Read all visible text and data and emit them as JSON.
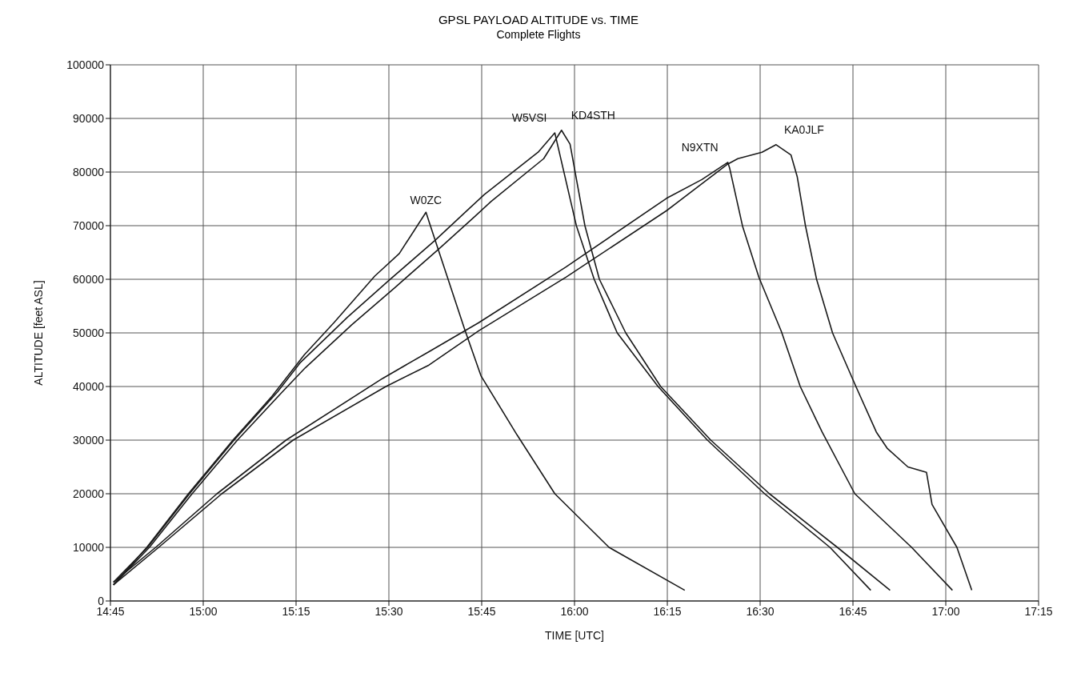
{
  "chart_data": {
    "type": "line",
    "title": "GPSL PAYLOAD ALTITUDE vs. TIME",
    "subtitle": "Complete Flights",
    "xlabel": "TIME [UTC]",
    "ylabel": "ALTITUDE [feet ASL]",
    "xlim": [
      14.75,
      17.25
    ],
    "xticks": [
      {
        "value": 14.75,
        "label": "14:45"
      },
      {
        "value": 15,
        "label": "15:00"
      },
      {
        "value": 15.25,
        "label": "15:15"
      },
      {
        "value": 15.5,
        "label": "15:30"
      },
      {
        "value": 15.75,
        "label": "15:45"
      },
      {
        "value": 16,
        "label": "16:00"
      },
      {
        "value": 16.25,
        "label": "16:15"
      },
      {
        "value": 16.5,
        "label": "16:30"
      },
      {
        "value": 16.75,
        "label": "16:45"
      },
      {
        "value": 17,
        "label": "17:00"
      },
      {
        "value": 17.25,
        "label": "17:15"
      }
    ],
    "ylim": [
      0,
      100000
    ],
    "yticks": [
      0,
      10000,
      20000,
      30000,
      40000,
      50000,
      60000,
      70000,
      80000,
      90000,
      100000
    ],
    "grid": true,
    "legend": false,
    "marker": "none",
    "line_style": "solid",
    "series": [
      {
        "name": "W0ZC",
        "color": "#1a1a1a",
        "x": [
          14.758,
          14.848,
          14.96,
          15.08,
          15.183,
          15.272,
          15.352,
          15.462,
          15.528,
          15.6,
          15.608,
          15.703,
          15.748,
          15.845,
          15.947,
          16.093,
          16.297
        ],
        "values": [
          3000,
          10000,
          20000,
          30000,
          38000,
          45900,
          51900,
          60600,
          64800,
          72500,
          70800,
          50900,
          42000,
          31000,
          20000,
          10000,
          2000
        ]
      },
      {
        "name": "W5VSI",
        "color": "#1a1a1a",
        "x": [
          14.758,
          14.85,
          14.963,
          15.083,
          15.2,
          15.262,
          15.388,
          15.502,
          15.625,
          15.718,
          15.757,
          15.902,
          15.947,
          16.005,
          16.053,
          16.115,
          16.225,
          16.358,
          16.512,
          16.688,
          16.798
        ],
        "values": [
          3500,
          10000,
          20000,
          30000,
          39000,
          44500,
          52900,
          59900,
          67300,
          73300,
          75800,
          83700,
          87300,
          70000,
          60000,
          50000,
          40000,
          30000,
          20000,
          10000,
          2000
        ]
      },
      {
        "name": "KD4STH",
        "color": "#1a1a1a",
        "x": [
          14.758,
          14.855,
          14.97,
          15.092,
          15.213,
          15.275,
          15.4,
          15.517,
          15.637,
          15.733,
          15.775,
          15.917,
          15.965,
          15.988,
          16.028,
          16.067,
          16.138,
          16.232,
          16.367,
          16.525,
          16.708,
          16.85
        ],
        "values": [
          3000,
          10000,
          20000,
          30000,
          39000,
          43500,
          51500,
          58500,
          65800,
          71800,
          74500,
          82500,
          87800,
          85200,
          70000,
          60000,
          50000,
          40000,
          30000,
          20000,
          10000,
          2000
        ]
      },
      {
        "name": "N9XTN",
        "color": "#1a1a1a",
        "x": [
          14.758,
          14.872,
          15.037,
          15.223,
          15.483,
          15.608,
          15.742,
          15.977,
          16.248,
          16.343,
          16.413,
          16.418,
          16.453,
          16.497,
          16.557,
          16.608,
          16.667,
          16.755,
          16.908,
          17.018
        ],
        "values": [
          3500,
          10000,
          20000,
          30000,
          41500,
          46500,
          51900,
          62300,
          75100,
          78600,
          81800,
          80700,
          69800,
          60300,
          50300,
          40000,
          31500,
          20000,
          10000,
          2000
        ]
      },
      {
        "name": "KA0JLF",
        "color": "#1a1a1a",
        "x": [
          14.758,
          14.88,
          15.05,
          15.242,
          15.492,
          15.608,
          15.742,
          15.977,
          16.248,
          16.413,
          16.44,
          16.505,
          16.543,
          16.583,
          16.6,
          16.622,
          16.652,
          16.695,
          16.758,
          16.813,
          16.842,
          16.898,
          16.948,
          16.963,
          17.03,
          17.07
        ],
        "values": [
          3000,
          10000,
          20000,
          30000,
          40000,
          44000,
          50400,
          60400,
          72800,
          81500,
          82500,
          83700,
          85100,
          83200,
          79100,
          70000,
          60000,
          50000,
          40000,
          31500,
          28500,
          25000,
          24000,
          18000,
          10000,
          2000
        ]
      }
    ]
  }
}
